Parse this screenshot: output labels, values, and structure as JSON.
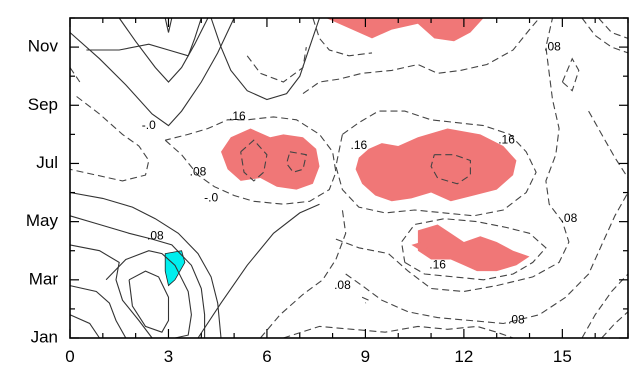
{
  "chart_data": {
    "type": "contour",
    "title": "",
    "xlabel": "",
    "ylabel": "",
    "xlim": [
      0,
      17
    ],
    "ylim": [
      1,
      12
    ],
    "x_ticks": [
      0,
      3,
      6,
      9,
      12,
      15
    ],
    "x_tick_labels": [
      "0",
      "3",
      "6",
      "9",
      "12",
      "15"
    ],
    "y_ticks": [
      1,
      3,
      5,
      7,
      9,
      11
    ],
    "y_tick_labels": [
      "Jan",
      "Mar",
      "May",
      "Jul",
      "Sep",
      "Nov"
    ],
    "contour_labels": [
      {
        "text": ".08",
        "x": 14.7,
        "y": 11.0
      },
      {
        "text": ".16",
        "x": 5.1,
        "y": 8.6
      },
      {
        "text": "-.0",
        "x": 2.4,
        "y": 8.3
      },
      {
        "text": ".16",
        "x": 8.8,
        "y": 7.6
      },
      {
        "text": ".16",
        "x": 13.3,
        "y": 7.8
      },
      {
        "text": ".08",
        "x": 3.9,
        "y": 6.7
      },
      {
        "text": "-.0",
        "x": 4.3,
        "y": 5.8
      },
      {
        "text": ".08",
        "x": 15.2,
        "y": 5.1
      },
      {
        "text": ".08",
        "x": 2.6,
        "y": 4.5
      },
      {
        "text": ".16",
        "x": 11.2,
        "y": 3.5
      },
      {
        "text": ".08",
        "x": 8.3,
        "y": 2.8
      },
      {
        "text": ".08",
        "x": 13.6,
        "y": 1.6
      }
    ],
    "shading": {
      "high_color": "#f07777",
      "low_color": "#00eeee"
    },
    "high_regions": [
      [
        [
          7.8,
          12
        ],
        [
          8.6,
          11.6
        ],
        [
          9.2,
          11.3
        ],
        [
          9.8,
          11.6
        ],
        [
          10.6,
          11.8
        ],
        [
          11.1,
          11.3
        ],
        [
          11.7,
          11.2
        ],
        [
          12.2,
          11.5
        ],
        [
          12.6,
          12
        ]
      ],
      [
        [
          4.8,
          6.8
        ],
        [
          4.6,
          7.4
        ],
        [
          4.9,
          7.9
        ],
        [
          5.5,
          8.2
        ],
        [
          6.1,
          7.9
        ],
        [
          6.5,
          8.0
        ],
        [
          7.1,
          7.9
        ],
        [
          7.5,
          7.5
        ],
        [
          7.6,
          6.9
        ],
        [
          7.4,
          6.3
        ],
        [
          6.9,
          6.1
        ],
        [
          6.3,
          6.2
        ],
        [
          5.8,
          6.5
        ],
        [
          5.2,
          6.4
        ]
      ],
      [
        [
          8.7,
          6.8
        ],
        [
          8.8,
          7.2
        ],
        [
          9.1,
          7.5
        ],
        [
          9.5,
          7.7
        ],
        [
          10.0,
          7.6
        ],
        [
          10.6,
          7.9
        ],
        [
          11.5,
          8.2
        ],
        [
          12.5,
          8.0
        ],
        [
          13.2,
          7.6
        ],
        [
          13.6,
          7.1
        ],
        [
          13.5,
          6.6
        ],
        [
          13.0,
          6.1
        ],
        [
          12.3,
          5.9
        ],
        [
          11.6,
          5.7
        ],
        [
          11.0,
          6.0
        ],
        [
          10.4,
          5.8
        ],
        [
          9.8,
          5.7
        ],
        [
          9.3,
          5.9
        ],
        [
          8.9,
          6.3
        ]
      ],
      [
        [
          10.6,
          4.0
        ],
        [
          10.6,
          4.7
        ],
        [
          11.2,
          4.9
        ],
        [
          11.6,
          4.6
        ],
        [
          12.0,
          4.3
        ],
        [
          12.5,
          4.5
        ],
        [
          13.0,
          4.3
        ],
        [
          13.5,
          4.0
        ],
        [
          14.0,
          3.8
        ],
        [
          13.6,
          3.5
        ],
        [
          13.0,
          3.3
        ],
        [
          12.4,
          3.3
        ],
        [
          12.0,
          3.5
        ],
        [
          11.6,
          3.7
        ],
        [
          11.0,
          3.7
        ]
      ],
      [
        [
          10.4,
          4.2
        ],
        [
          10.7,
          4.0
        ],
        [
          10.9,
          4.1
        ],
        [
          10.7,
          4.3
        ]
      ]
    ],
    "low_regions": [
      [
        [
          2.9,
          3.9
        ],
        [
          3.4,
          4.0
        ],
        [
          3.5,
          3.6
        ],
        [
          3.2,
          3.0
        ],
        [
          3.0,
          2.8
        ],
        [
          2.9,
          3.3
        ]
      ]
    ]
  }
}
